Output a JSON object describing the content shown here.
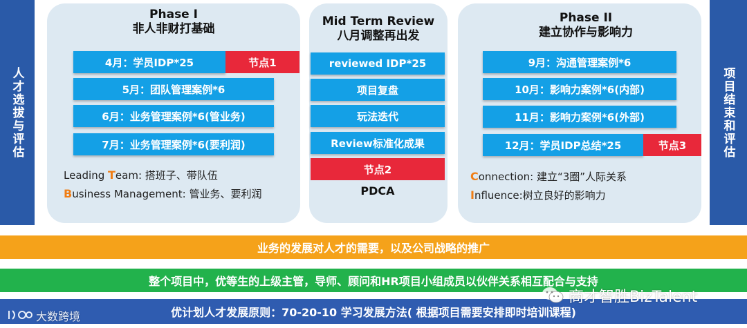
{
  "side": {
    "left": "人才选拔与评估",
    "right": "项目结束和评估"
  },
  "phase1": {
    "title_line1": "Phase I",
    "title_line2": "非人非财打基础",
    "items": [
      "4月：学员IDP*25",
      "5月：团队管理案例*6",
      "6月：业务管理案例*6(管业务)",
      "7月：业务管理案例*6(要利润)"
    ],
    "node": "节点1",
    "notes": [
      {
        "parts": [
          "",
          "Leading ",
          "T",
          "eam: 搭班子、带队伍"
        ]
      },
      {
        "parts": [
          "B",
          "usiness Management: 管业务、要利润"
        ]
      }
    ]
  },
  "mid": {
    "title_line1": "Mid Term Review",
    "title_line2": "八月调整再出发",
    "items": [
      "reviewed IDP*25",
      "项目复盘",
      "玩法迭代",
      "Review标准化成果"
    ],
    "node": "节点2",
    "footer": "PDCA"
  },
  "phase2": {
    "title_line1": "Phase II",
    "title_line2": "建立协作与影响力",
    "items": [
      "9月：沟通管理案例*6",
      "10月：影响力案例*6(内部)",
      "11月：影响力案例*6(外部)",
      "12月：学员IDP总结*25"
    ],
    "node": "节点3",
    "notes": [
      {
        "initial": "C",
        "rest": "onnection: 建立“3圈”人际关系"
      },
      {
        "initial": "I",
        "rest": "nfluence:树立良好的影响力"
      }
    ]
  },
  "bands": {
    "orange": "业务的发展对人才的需要，以及公司战略的推广",
    "green": "整个项目中，优等生的上级主管，导师、顾问和HR项目小组成员以伙伴关系相互配合与支持",
    "blue": "优计划人才发展原则：70-20-10 学习发展方法( 根据项目需要安排即时培训课程)"
  },
  "watermarks": {
    "right": "商才智胜BizTalent",
    "left": "大数跨境"
  },
  "colors": {
    "side": "#2a5aa8",
    "panel": "#dde9f2",
    "pill": "#14a0e6",
    "node": "#e8283a",
    "initial": "#f07d14",
    "band_orange": "#f5a21a",
    "band_green": "#22b24c",
    "band_blue": "#2f5cb0"
  }
}
